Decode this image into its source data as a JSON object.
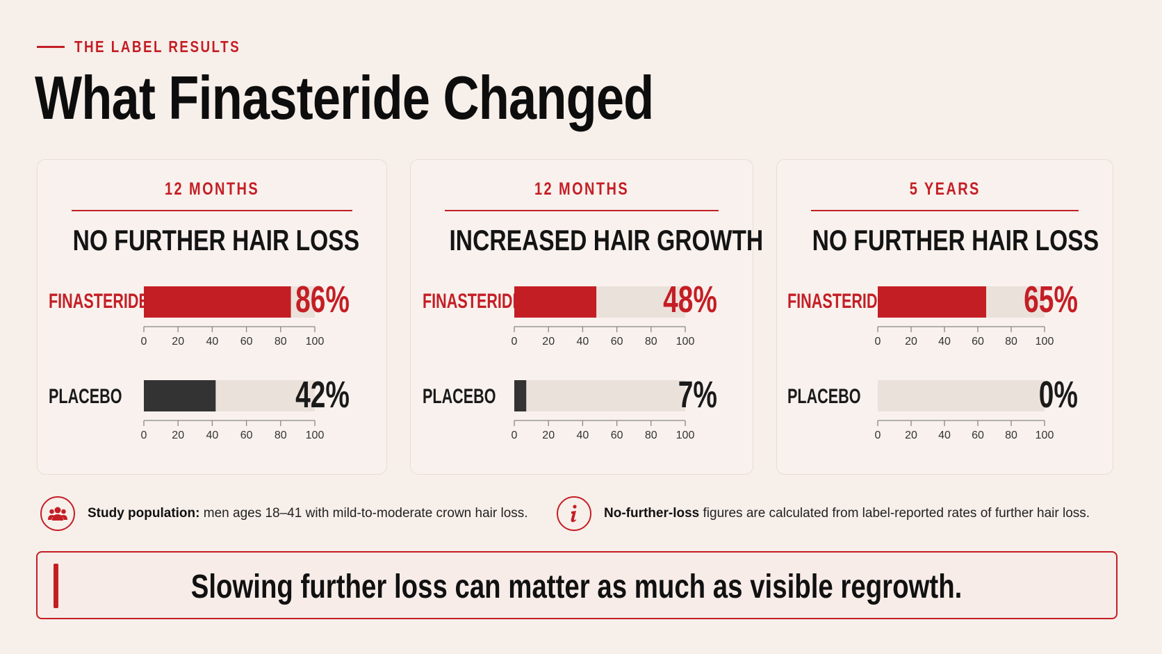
{
  "header": {
    "eyebrow": "THE LABEL RESULTS",
    "title": "What Finasteride Changed"
  },
  "colors": {
    "accent": "#c41e25",
    "placebo": "#333333",
    "track": "#ebe1db",
    "background": "#f7efea"
  },
  "chart_data": [
    {
      "type": "bar",
      "orientation": "horizontal",
      "title": "NO FURTHER HAIR LOSS",
      "subtitle": "12 MONTHS",
      "categories": [
        "FINASTERIDE",
        "PLACEBO"
      ],
      "values": [
        86,
        42
      ],
      "data_labels": [
        "86%",
        "42%"
      ],
      "xlim": [
        0,
        100
      ],
      "xticks": [
        0,
        20,
        40,
        60,
        80,
        100
      ]
    },
    {
      "type": "bar",
      "orientation": "horizontal",
      "title": "INCREASED HAIR GROWTH",
      "subtitle": "12 MONTHS",
      "categories": [
        "FINASTERIDE",
        "PLACEBO"
      ],
      "values": [
        48,
        7
      ],
      "data_labels": [
        "48%",
        "7%"
      ],
      "xlim": [
        0,
        100
      ],
      "xticks": [
        0,
        20,
        40,
        60,
        80,
        100
      ]
    },
    {
      "type": "bar",
      "orientation": "horizontal",
      "title": "NO FURTHER HAIR LOSS",
      "subtitle": "5 YEARS",
      "categories": [
        "FINASTERIDE",
        "PLACEBO"
      ],
      "values": [
        65,
        0
      ],
      "data_labels": [
        "65%",
        "0%"
      ],
      "xlim": [
        0,
        100
      ],
      "xticks": [
        0,
        20,
        40,
        60,
        80,
        100
      ]
    }
  ],
  "footer": {
    "population": {
      "icon": "people-group-icon",
      "label": "Study population:",
      "text": "men ages 18–41 with mild-to-moderate crown hair loss."
    },
    "note": {
      "icon": "info-icon",
      "label": "No-further-loss",
      "text": "figures are calculated from label-reported rates of further hair loss."
    }
  },
  "callout": {
    "text": "Slowing further loss can matter as much as visible regrowth."
  }
}
